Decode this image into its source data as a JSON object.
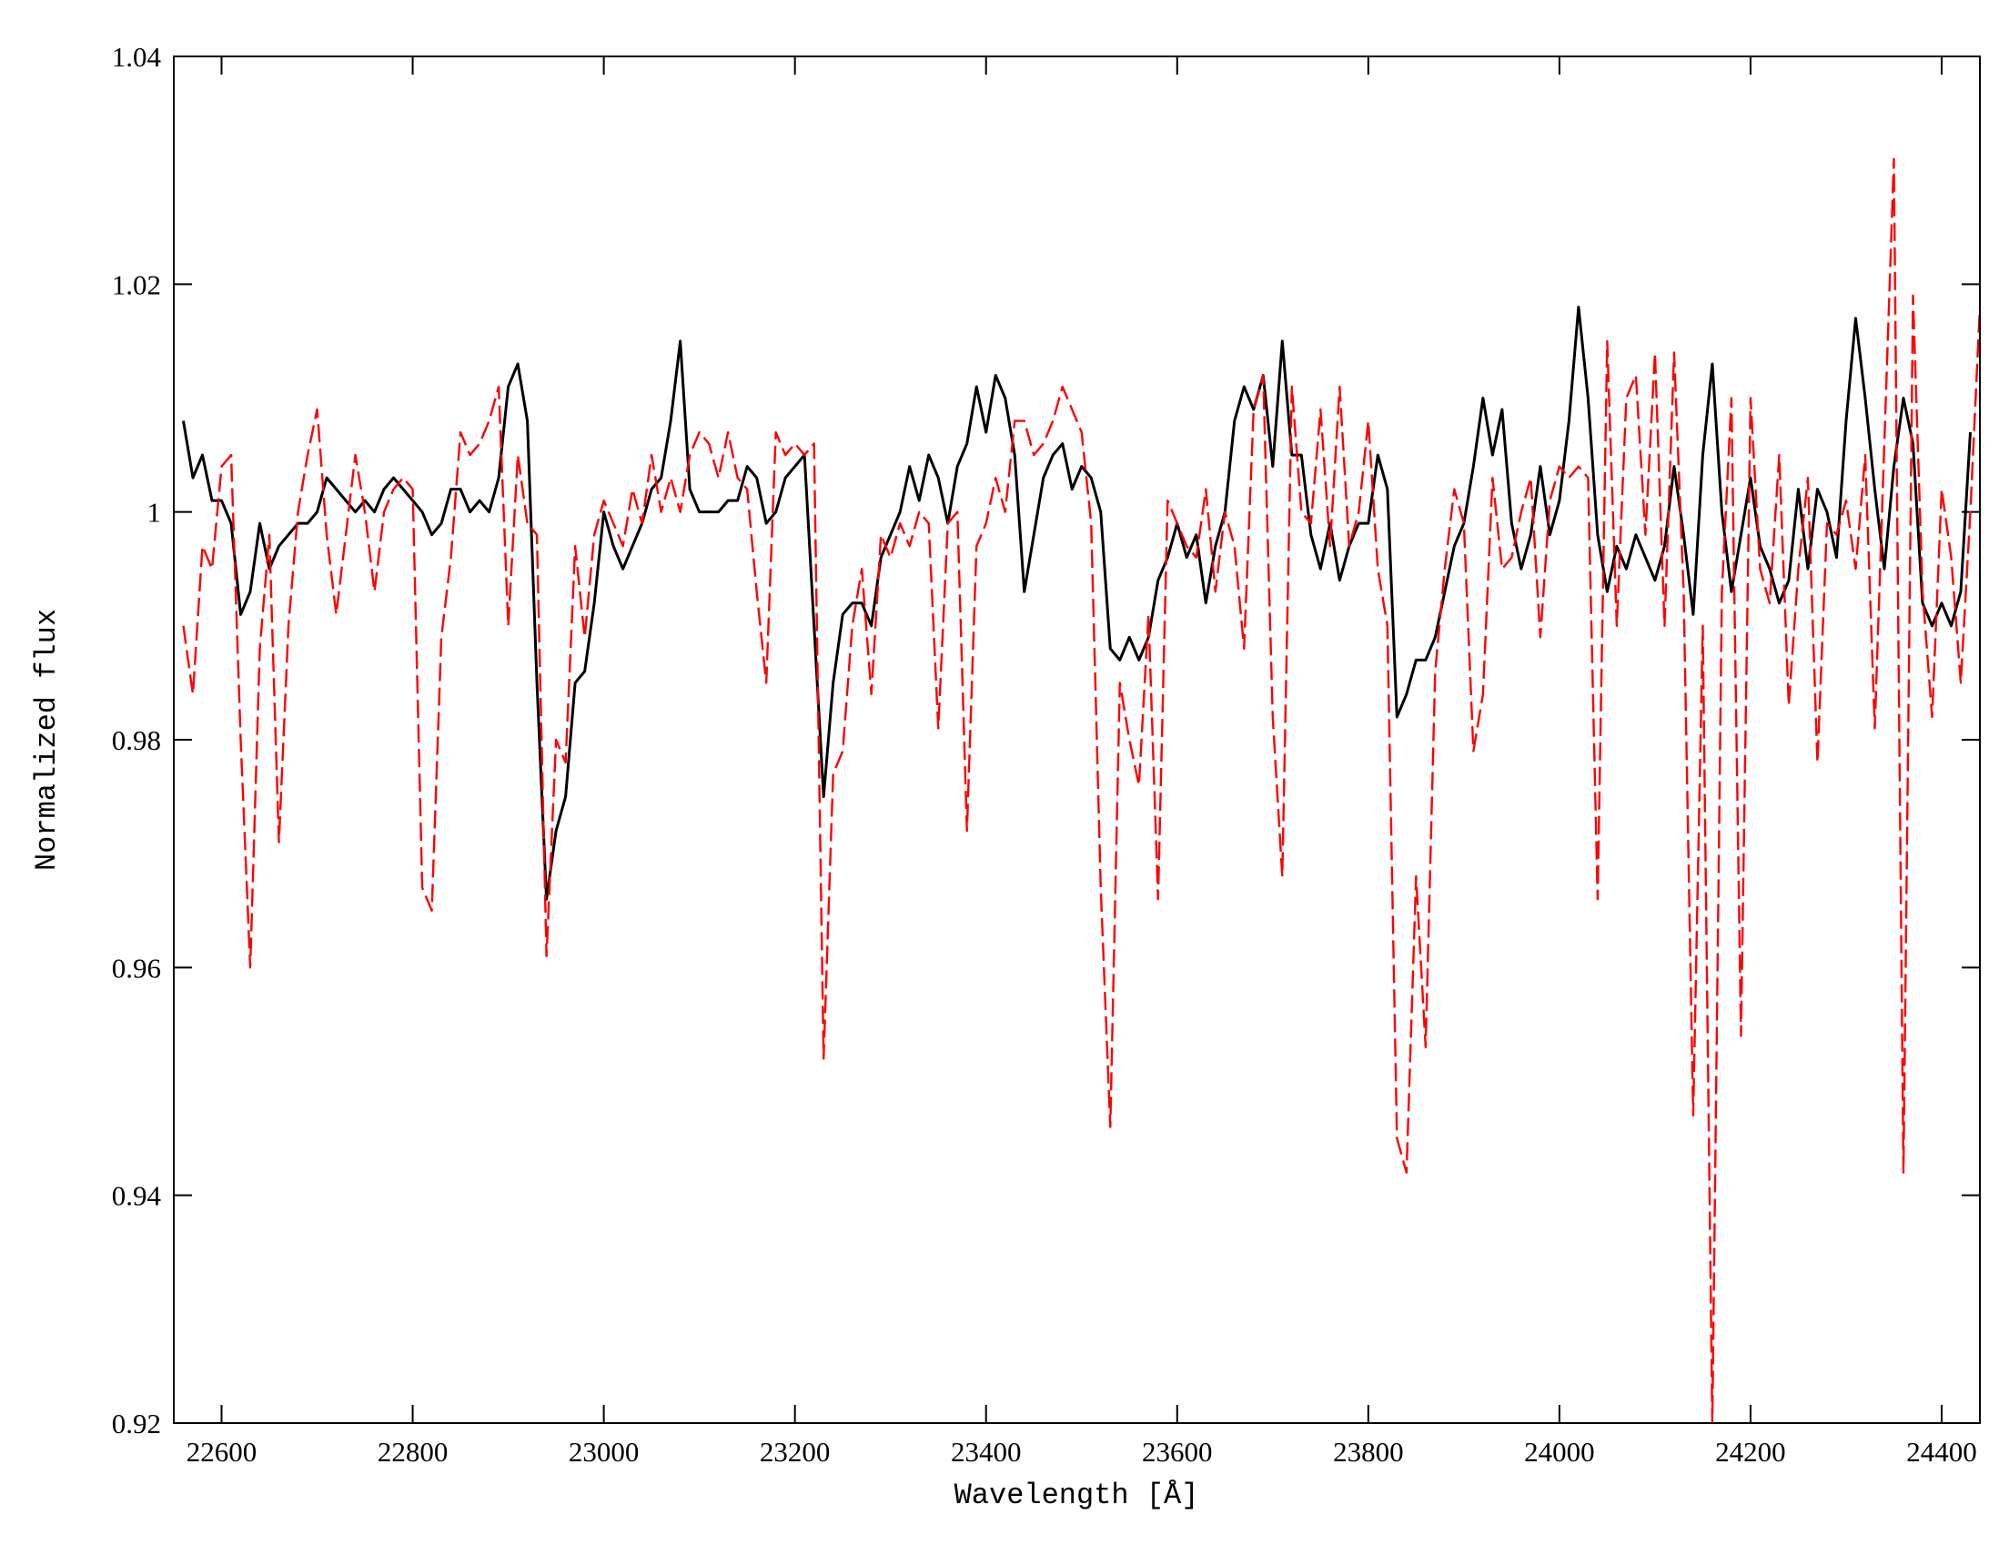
{
  "chart_data": {
    "type": "line",
    "xlabel": "Wavelength [Å]",
    "ylabel": "Normalized flux",
    "xlim": [
      22550,
      24440
    ],
    "ylim": [
      0.92,
      1.04
    ],
    "xticks": [
      22600,
      22800,
      23000,
      23200,
      23400,
      23600,
      23800,
      24000,
      24200,
      24400
    ],
    "yticks": [
      0.92,
      0.94,
      0.96,
      0.98,
      1,
      1.02,
      1.04
    ],
    "x": [
      22560,
      22570,
      22580,
      22590,
      22600,
      22610,
      22620,
      22630,
      22640,
      22650,
      22660,
      22670,
      22680,
      22690,
      22700,
      22710,
      22720,
      22730,
      22740,
      22750,
      22760,
      22770,
      22780,
      22790,
      22800,
      22810,
      22820,
      22830,
      22840,
      22850,
      22860,
      22870,
      22880,
      22890,
      22900,
      22910,
      22920,
      22930,
      22940,
      22950,
      22960,
      22970,
      22980,
      22990,
      23000,
      23010,
      23020,
      23030,
      23040,
      23050,
      23060,
      23070,
      23080,
      23090,
      23100,
      23110,
      23120,
      23130,
      23140,
      23150,
      23160,
      23170,
      23180,
      23190,
      23200,
      23210,
      23220,
      23230,
      23240,
      23250,
      23260,
      23270,
      23280,
      23290,
      23300,
      23310,
      23320,
      23330,
      23340,
      23350,
      23360,
      23370,
      23380,
      23390,
      23400,
      23410,
      23420,
      23430,
      23440,
      23450,
      23460,
      23470,
      23480,
      23490,
      23500,
      23510,
      23520,
      23530,
      23540,
      23550,
      23560,
      23570,
      23580,
      23590,
      23600,
      23610,
      23620,
      23630,
      23640,
      23650,
      23660,
      23670,
      23680,
      23690,
      23700,
      23710,
      23720,
      23730,
      23740,
      23750,
      23760,
      23770,
      23780,
      23790,
      23800,
      23810,
      23820,
      23830,
      23840,
      23850,
      23860,
      23870,
      23880,
      23890,
      23900,
      23910,
      23920,
      23930,
      23940,
      23950,
      23960,
      23970,
      23980,
      23990,
      24000,
      24010,
      24020,
      24030,
      24040,
      24050,
      24060,
      24070,
      24080,
      24090,
      24100,
      24110,
      24120,
      24130,
      24140,
      24150,
      24160,
      24170,
      24180,
      24190,
      24200,
      24210,
      24220,
      24230,
      24240,
      24250,
      24260,
      24270,
      24280,
      24290,
      24300,
      24310,
      24320,
      24330,
      24340,
      24350,
      24360,
      24370,
      24380,
      24390,
      24400,
      24410,
      24420,
      24430,
      24440
    ],
    "series": [
      {
        "color": "#000000",
        "linestyle": "solid",
        "values": [
          1.008,
          1.003,
          1.005,
          1.001,
          1.001,
          0.999,
          0.991,
          0.993,
          0.999,
          0.995,
          0.997,
          0.998,
          0.999,
          0.999,
          1.0,
          1.003,
          1.002,
          1.001,
          1.0,
          1.001,
          1.0,
          1.002,
          1.003,
          1.002,
          1.001,
          1.0,
          0.998,
          0.999,
          1.002,
          1.002,
          1.0,
          1.001,
          1.0,
          1.003,
          1.011,
          1.013,
          1.008,
          0.985,
          0.966,
          0.972,
          0.975,
          0.985,
          0.986,
          0.992,
          1.0,
          0.997,
          0.995,
          0.997,
          0.999,
          1.002,
          1.003,
          1.008,
          1.015,
          1.002,
          1.0,
          1.0,
          1.0,
          1.001,
          1.001,
          1.004,
          1.003,
          0.999,
          1.0,
          1.003,
          1.004,
          1.005,
          0.99,
          0.975,
          0.985,
          0.991,
          0.992,
          0.992,
          0.99,
          0.996,
          0.998,
          1.0,
          1.004,
          1.001,
          1.005,
          1.003,
          0.999,
          1.004,
          1.006,
          1.011,
          1.007,
          1.012,
          1.01,
          1.005,
          0.993,
          0.998,
          1.003,
          1.005,
          1.006,
          1.002,
          1.004,
          1.003,
          1.0,
          0.988,
          0.987,
          0.989,
          0.987,
          0.989,
          0.994,
          0.996,
          0.999,
          0.996,
          0.998,
          0.992,
          0.997,
          1.0,
          1.008,
          1.011,
          1.009,
          1.012,
          1.004,
          1.015,
          1.005,
          1.005,
          0.998,
          0.995,
          0.999,
          0.994,
          0.997,
          0.999,
          0.999,
          1.005,
          1.002,
          0.982,
          0.984,
          0.987,
          0.987,
          0.989,
          0.993,
          0.997,
          0.999,
          1.004,
          1.01,
          1.005,
          1.009,
          0.999,
          0.995,
          0.998,
          1.004,
          0.998,
          1.001,
          1.008,
          1.018,
          1.01,
          0.998,
          0.993,
          0.997,
          0.995,
          0.998,
          0.996,
          0.994,
          0.997,
          1.004,
          0.998,
          0.991,
          1.005,
          1.013,
          1.0,
          0.993,
          0.998,
          1.003,
          0.997,
          0.995,
          0.992,
          0.994,
          1.002,
          0.995,
          1.002,
          1.0,
          0.996,
          1.008,
          1.017,
          1.01,
          1.002,
          0.995,
          1.004,
          1.01,
          1.006,
          0.992,
          0.99,
          0.992,
          0.99,
          0.993,
          1.007,
          null
        ]
      },
      {
        "color": "#ff0000",
        "linestyle": "dashed",
        "values": [
          0.99,
          0.984,
          0.997,
          0.995,
          1.004,
          1.005,
          0.98,
          0.96,
          0.988,
          0.998,
          0.971,
          0.99,
          1.0,
          1.005,
          1.009,
          0.998,
          0.991,
          0.998,
          1.005,
          1.0,
          0.993,
          1.0,
          1.002,
          1.003,
          1.002,
          0.967,
          0.965,
          0.989,
          0.996,
          1.007,
          1.005,
          1.006,
          1.008,
          1.011,
          0.99,
          1.005,
          0.999,
          0.998,
          0.961,
          0.98,
          0.978,
          0.997,
          0.989,
          0.998,
          1.001,
          0.999,
          0.997,
          1.002,
          0.999,
          1.005,
          1.0,
          1.003,
          1.0,
          1.005,
          1.007,
          1.006,
          1.003,
          1.007,
          1.003,
          1.002,
          0.993,
          0.985,
          1.007,
          1.005,
          1.006,
          1.005,
          1.006,
          0.952,
          0.977,
          0.979,
          0.99,
          0.995,
          0.984,
          0.998,
          0.996,
          0.999,
          0.997,
          1.0,
          0.999,
          0.981,
          0.999,
          1.0,
          0.972,
          0.997,
          0.999,
          1.003,
          1.0,
          1.008,
          1.008,
          1.005,
          1.006,
          1.008,
          1.011,
          1.009,
          1.007,
          0.999,
          0.967,
          0.946,
          0.985,
          0.98,
          0.976,
          0.991,
          0.966,
          1.001,
          0.999,
          0.997,
          0.996,
          1.002,
          0.993,
          1.0,
          0.997,
          0.988,
          1.009,
          1.012,
          0.982,
          0.968,
          1.011,
          1.0,
          0.999,
          1.009,
          0.997,
          1.011,
          0.997,
          1.0,
          1.008,
          0.995,
          0.99,
          0.945,
          0.942,
          0.968,
          0.953,
          0.986,
          0.995,
          1.002,
          0.999,
          0.979,
          0.984,
          1.003,
          0.995,
          0.996,
          1.0,
          1.003,
          0.989,
          1.001,
          1.004,
          1.003,
          1.004,
          1.003,
          0.966,
          1.015,
          0.99,
          1.01,
          1.012,
          0.998,
          1.014,
          0.99,
          1.014,
          0.993,
          0.947,
          0.99,
          0.92,
          0.993,
          1.01,
          0.954,
          1.01,
          0.995,
          0.992,
          1.005,
          0.983,
          0.995,
          1.003,
          0.978,
          0.999,
          0.998,
          1.001,
          0.995,
          1.005,
          0.981,
          1.006,
          1.031,
          0.942,
          1.019,
          0.993,
          0.982,
          1.002,
          0.996,
          0.985,
          1.0,
          1.018
        ]
      }
    ]
  }
}
